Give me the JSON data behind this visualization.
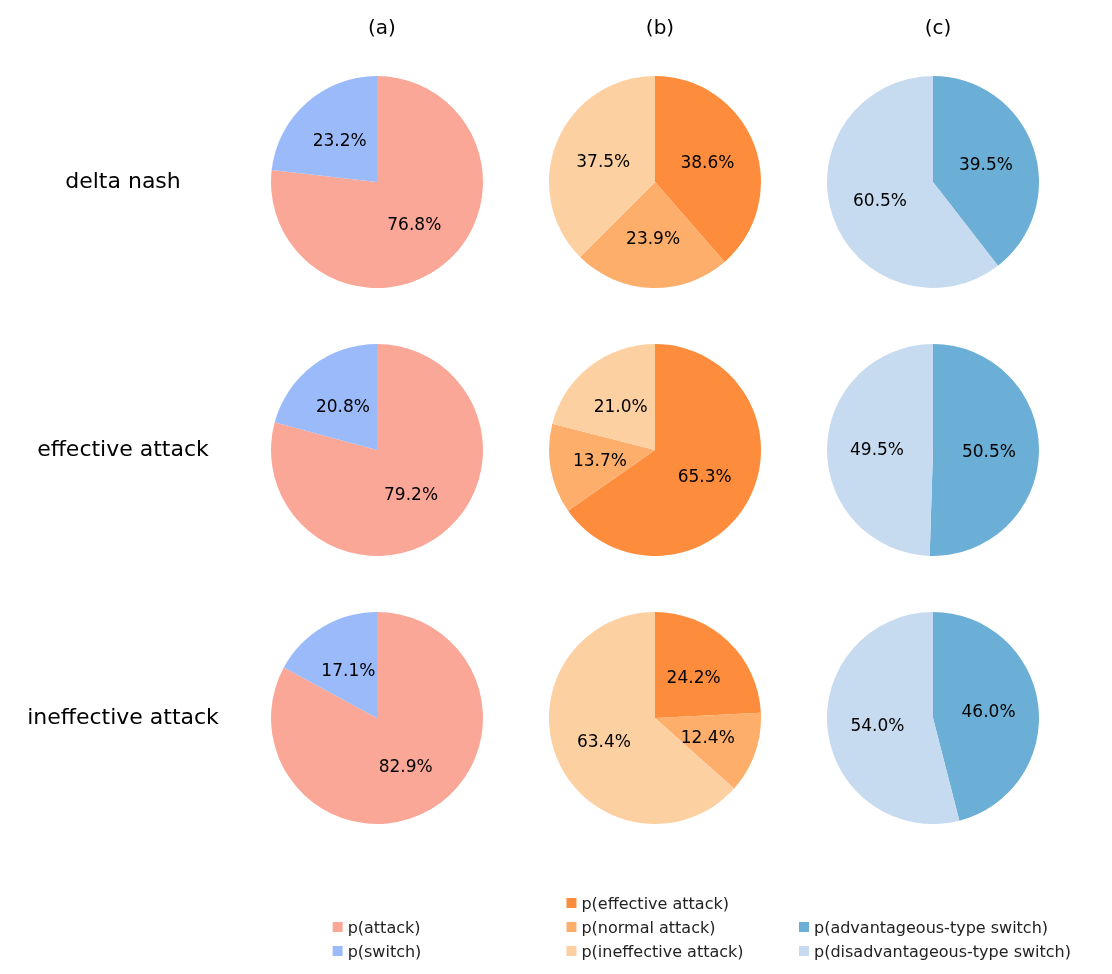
{
  "chart_data": [
    {
      "type": "pie",
      "title": "(a)",
      "categories": [
        "p(attack)",
        "p(switch)"
      ],
      "colors": [
        "#faa797",
        "#9bbaf9"
      ],
      "legend": "bottom",
      "series": [
        {
          "name": "delta nash",
          "values": [
            76.8,
            23.2
          ],
          "value_labels": [
            "76.8%",
            "23.2%"
          ]
        },
        {
          "name": "effective attack",
          "values": [
            79.2,
            20.8
          ],
          "value_labels": [
            "79.2%",
            "20.8%"
          ]
        },
        {
          "name": "ineffective attack",
          "values": [
            82.9,
            17.1
          ],
          "value_labels": [
            "82.9%",
            "17.1%"
          ]
        }
      ]
    },
    {
      "type": "pie",
      "title": "(b)",
      "categories": [
        "p(effective attack)",
        "p(normal attack)",
        "p(ineffective attack)"
      ],
      "colors": [
        "#fd8d3c",
        "#fdae6b",
        "#fdd0a2"
      ],
      "legend": "bottom",
      "series": [
        {
          "values": [
            38.6,
            23.9,
            37.5
          ],
          "value_labels": [
            "38.6%",
            "23.9%",
            "37.5%"
          ]
        },
        {
          "values": [
            65.3,
            13.7,
            21.0
          ],
          "value_labels": [
            "65.3%",
            "13.7%",
            "21.0%"
          ]
        },
        {
          "values": [
            24.2,
            12.4,
            63.4
          ],
          "value_labels": [
            "24.2%",
            "12.4%",
            "63.4%"
          ]
        }
      ]
    },
    {
      "type": "pie",
      "title": "(c)",
      "categories": [
        "p(advantageous-type switch)",
        "p(disadvantageous-type switch)"
      ],
      "colors": [
        "#6baed6",
        "#c6dbef"
      ],
      "legend": "bottom",
      "series": [
        {
          "values": [
            39.5,
            60.5
          ],
          "value_labels": [
            "39.5%",
            "60.5%"
          ]
        },
        {
          "values": [
            50.5,
            49.5
          ],
          "value_labels": [
            "50.5%",
            "49.5%"
          ]
        },
        {
          "values": [
            46.0,
            54.0
          ],
          "value_labels": [
            "46.0%",
            "54.0%"
          ]
        }
      ]
    }
  ]
}
